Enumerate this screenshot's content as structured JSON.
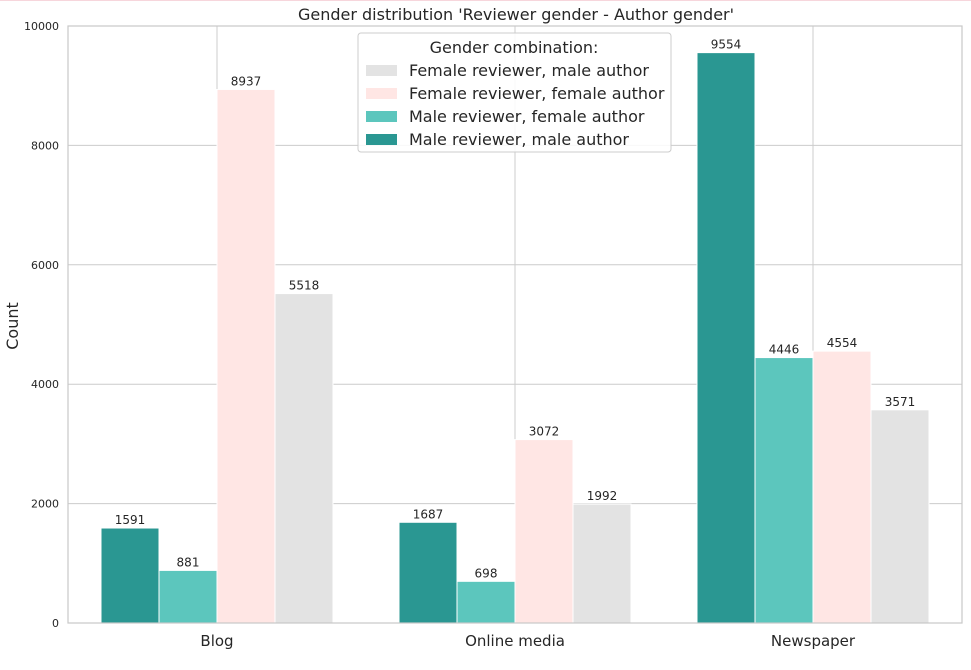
{
  "chart_data": {
    "type": "bar",
    "title": "Gender distribution 'Reviewer gender - Author gender'",
    "xlabel": "",
    "ylabel": "Count",
    "ylim": [
      0,
      10000
    ],
    "yticks": [
      0,
      2000,
      4000,
      6000,
      8000,
      10000
    ],
    "grid": true,
    "legend_position": "top-center",
    "legend_title": "Gender combination:",
    "categories": [
      "Blog",
      "Online media",
      "Newspaper"
    ],
    "series": [
      {
        "name": "Male reviewer, male author",
        "color": "#2a9792",
        "values": [
          1591,
          1687,
          9554
        ]
      },
      {
        "name": "Male reviewer, female author",
        "color": "#5cc6bd",
        "values": [
          881,
          698,
          4446
        ]
      },
      {
        "name": "Female reviewer, female author",
        "color": "#ffe6e4",
        "values": [
          8937,
          3072,
          4554
        ]
      },
      {
        "name": "Female reviewer, male author",
        "color": "#e3e3e3",
        "values": [
          5518,
          1992,
          3571
        ]
      }
    ],
    "legend_order": [
      3,
      2,
      1,
      0
    ]
  }
}
